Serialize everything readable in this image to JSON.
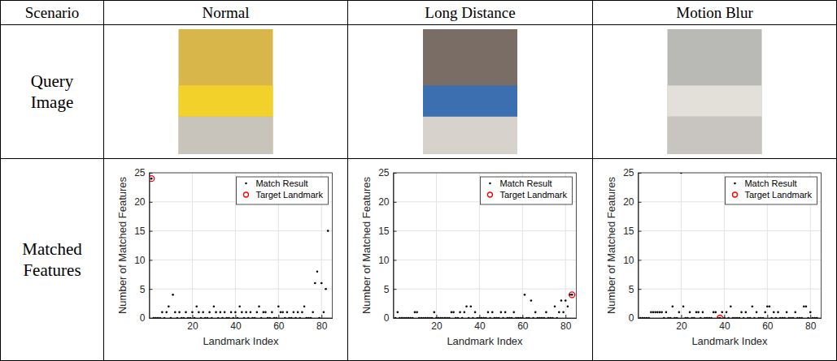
{
  "table": {
    "header": [
      "Scenario",
      "Normal",
      "Long Distance",
      "Motion Blur"
    ],
    "row_labels": [
      "Query Image",
      "Matched Features"
    ]
  },
  "chart_data": [
    {
      "type": "scatter",
      "x_label": "Landmark Index",
      "y_label": "Number of Matched Features",
      "xlim": [
        0,
        85
      ],
      "xticks": [
        20,
        40,
        60,
        80
      ],
      "ylim": [
        0,
        25
      ],
      "yticks": [
        0,
        5,
        10,
        15,
        20,
        25
      ],
      "grid": true,
      "legend": "upper right",
      "series": [
        {
          "name": "Match Result",
          "color": "#000000",
          "marker": "dot",
          "x": [
            1,
            2,
            3,
            4,
            5,
            6,
            7,
            8,
            9,
            10,
            11,
            12,
            13,
            14,
            15,
            16,
            17,
            18,
            19,
            20,
            21,
            22,
            23,
            24,
            25,
            26,
            27,
            28,
            29,
            30,
            31,
            32,
            33,
            34,
            35,
            36,
            37,
            38,
            39,
            40,
            41,
            42,
            43,
            44,
            45,
            46,
            47,
            48,
            49,
            50,
            51,
            52,
            53,
            54,
            55,
            56,
            57,
            58,
            59,
            60,
            61,
            62,
            63,
            64,
            65,
            66,
            67,
            68,
            69,
            70,
            71,
            72,
            73,
            74,
            75,
            76,
            77,
            78,
            79,
            80,
            81,
            82,
            83
          ],
          "values": [
            24,
            0,
            0,
            0,
            0,
            1,
            0,
            1,
            2,
            0,
            4,
            1,
            0,
            1,
            0,
            0,
            1,
            0,
            0,
            1,
            0,
            2,
            1,
            0,
            1,
            0,
            0,
            1,
            0,
            2,
            1,
            0,
            1,
            0,
            1,
            0,
            0,
            1,
            0,
            1,
            0,
            2,
            1,
            0,
            1,
            0,
            1,
            0,
            0,
            1,
            2,
            0,
            1,
            1,
            0,
            0,
            1,
            0,
            0,
            2,
            1,
            1,
            0,
            1,
            0,
            0,
            1,
            0,
            1,
            0,
            1,
            2,
            0,
            0,
            0,
            1,
            6,
            8,
            0,
            6,
            1,
            5,
            15
          ]
        },
        {
          "name": "Target Landmark",
          "color": "#ff0000",
          "marker": "circle",
          "x": [
            1
          ],
          "values": [
            24
          ]
        }
      ]
    },
    {
      "type": "scatter",
      "x_label": "Landmark Index",
      "y_label": "Number of Matched Features",
      "xlim": [
        0,
        85
      ],
      "xticks": [
        20,
        40,
        60,
        80
      ],
      "ylim": [
        0,
        25
      ],
      "yticks": [
        0,
        5,
        10,
        15,
        20,
        25
      ],
      "grid": true,
      "legend": "upper right",
      "series": [
        {
          "name": "Match Result",
          "color": "#000000",
          "marker": "dot",
          "x": [
            1,
            2,
            3,
            4,
            5,
            6,
            7,
            8,
            9,
            10,
            11,
            12,
            13,
            14,
            15,
            16,
            17,
            18,
            19,
            20,
            21,
            22,
            23,
            24,
            25,
            26,
            27,
            28,
            29,
            30,
            31,
            32,
            33,
            34,
            35,
            36,
            37,
            38,
            39,
            40,
            41,
            42,
            43,
            44,
            45,
            46,
            47,
            48,
            49,
            50,
            51,
            52,
            53,
            54,
            55,
            56,
            57,
            58,
            59,
            60,
            61,
            62,
            63,
            64,
            65,
            66,
            67,
            68,
            69,
            70,
            71,
            72,
            73,
            74,
            75,
            76,
            77,
            78,
            79,
            80,
            81,
            82,
            83
          ],
          "values": [
            0,
            1,
            0,
            0,
            0,
            0,
            0,
            0,
            0,
            1,
            1,
            0,
            0,
            0,
            0,
            0,
            0,
            0,
            1,
            0,
            0,
            0,
            0,
            0,
            0,
            0,
            1,
            1,
            0,
            0,
            1,
            0,
            1,
            2,
            0,
            2,
            0,
            1,
            0,
            0,
            0,
            0,
            0,
            1,
            0,
            1,
            0,
            0,
            0,
            1,
            0,
            1,
            0,
            0,
            0,
            1,
            0,
            0,
            0,
            0,
            4,
            0,
            0,
            3,
            0,
            1,
            0,
            0,
            0,
            0,
            1,
            0,
            0,
            0,
            2,
            0,
            1,
            3,
            1,
            3,
            2,
            4,
            4
          ]
        },
        {
          "name": "Target Landmark",
          "color": "#ff0000",
          "marker": "circle",
          "x": [
            83
          ],
          "values": [
            4
          ]
        }
      ]
    },
    {
      "type": "scatter",
      "x_label": "Landmark Index",
      "y_label": "Number of Matched Features",
      "xlim": [
        0,
        85
      ],
      "xticks": [
        20,
        40,
        60,
        80
      ],
      "ylim": [
        0,
        25
      ],
      "yticks": [
        0,
        5,
        10,
        15,
        20,
        25
      ],
      "grid": true,
      "legend": "upper right",
      "series": [
        {
          "name": "Match Result",
          "color": "#000000",
          "marker": "dot",
          "x": [
            1,
            2,
            3,
            4,
            5,
            6,
            7,
            8,
            9,
            10,
            11,
            12,
            13,
            14,
            15,
            16,
            17,
            18,
            19,
            20,
            21,
            22,
            23,
            24,
            25,
            26,
            27,
            28,
            29,
            30,
            31,
            32,
            33,
            34,
            35,
            36,
            37,
            38,
            39,
            40,
            41,
            42,
            43,
            44,
            45,
            46,
            47,
            48,
            49,
            50,
            51,
            52,
            53,
            54,
            55,
            56,
            57,
            58,
            59,
            60,
            61,
            62,
            63,
            64,
            65,
            66,
            67,
            68,
            69,
            70,
            71,
            72,
            73,
            74,
            75,
            76,
            77,
            78,
            79,
            80,
            81,
            82,
            83
          ],
          "values": [
            0,
            0,
            0,
            0,
            0,
            1,
            1,
            1,
            1,
            1,
            1,
            0,
            1,
            0,
            0,
            2,
            0,
            0,
            1,
            25,
            2,
            0,
            0,
            1,
            0,
            0,
            1,
            1,
            0,
            1,
            0,
            0,
            0,
            0,
            1,
            1,
            0,
            0,
            1,
            0,
            1,
            0,
            2,
            0,
            0,
            0,
            0,
            1,
            0,
            1,
            0,
            0,
            2,
            0,
            1,
            0,
            0,
            0,
            1,
            2,
            2,
            0,
            1,
            0,
            1,
            0,
            0,
            0,
            1,
            0,
            0,
            0,
            1,
            0,
            0,
            0,
            2,
            2,
            0,
            1,
            0,
            0,
            0
          ]
        },
        {
          "name": "Target Landmark",
          "color": "#ff0000",
          "marker": "circle",
          "x": [
            38
          ],
          "values": [
            0
          ]
        }
      ]
    }
  ]
}
